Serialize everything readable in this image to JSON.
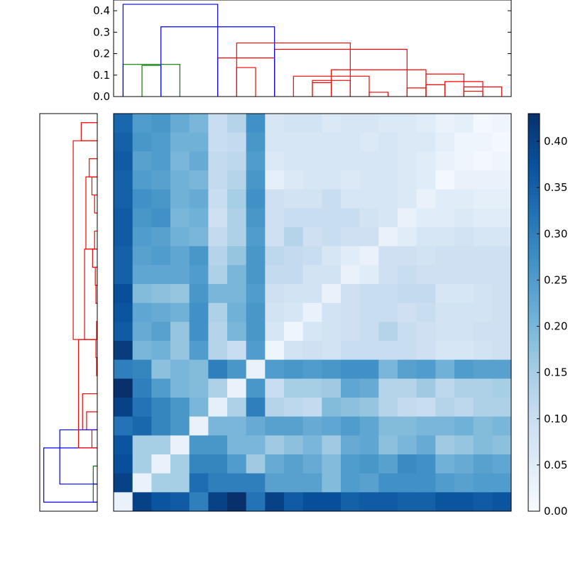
{
  "chart_data": [
    {
      "type": "dendrogram",
      "orientation": "top",
      "ylim": [
        0,
        0.45
      ],
      "yticks": [
        "0.0",
        "0.1",
        "0.2",
        "0.3",
        "0.4"
      ],
      "colors": {
        "blue": "#0000ff",
        "green": "#008000",
        "red": "#ff0000"
      },
      "links": [
        {
          "left": 1,
          "right": 2,
          "height": 0.145,
          "color": "green"
        },
        {
          "left": 0,
          "right": 3,
          "height": 0.15,
          "color": "green"
        },
        {
          "left": 6,
          "right": 7,
          "height": 0.135,
          "color": "red"
        },
        {
          "left": 5,
          "right": 8,
          "height": 0.18,
          "color": "red"
        },
        {
          "left": 10,
          "right": 11,
          "height": 0.065,
          "color": "red"
        },
        {
          "left": 10,
          "right": 12,
          "height": 0.075,
          "color": "red"
        },
        {
          "left": 9,
          "right": 13,
          "height": 0.095,
          "color": "red"
        },
        {
          "left": 13,
          "right": 14,
          "height": 0.02,
          "color": "red"
        },
        {
          "left": 15,
          "right": 16,
          "height": 0.04,
          "color": "red"
        },
        {
          "left": 16,
          "right": 17,
          "height": 0.055,
          "color": "red"
        },
        {
          "left": 18,
          "right": 19,
          "height": 0.025,
          "color": "red"
        },
        {
          "left": 18,
          "right": 20,
          "height": 0.045,
          "color": "red"
        },
        {
          "left": 17,
          "right": 19,
          "height": 0.07,
          "color": "red"
        },
        {
          "left": 16,
          "right": 18,
          "height": 0.105,
          "color": "red"
        },
        {
          "left": 11,
          "right": 16,
          "height": 0.125,
          "color": "red"
        },
        {
          "left": 8,
          "right": 15,
          "height": 0.22,
          "color": "red"
        },
        {
          "left": 6,
          "right": 12,
          "height": 0.25,
          "color": "red"
        },
        {
          "left": 2,
          "right": 8,
          "height": 0.325,
          "color": "blue"
        },
        {
          "left": 0,
          "right": 5,
          "height": 0.43,
          "color": "blue"
        }
      ]
    },
    {
      "type": "dendrogram",
      "orientation": "left",
      "colors": {
        "blue": "#0000ff",
        "green": "#008000",
        "red": "#ff0000"
      },
      "links": [
        {
          "leaf_a": 1,
          "leaf_b": 2,
          "distance": 0.03,
          "color": "green"
        },
        {
          "leaf_a": 0,
          "leaf_b": 1,
          "distance": 0.03,
          "color": "green"
        },
        {
          "leaf_a": 3,
          "leaf_b": 4,
          "distance": 0.04,
          "color": "red"
        },
        {
          "leaf_a": 4,
          "leaf_b": 5,
          "distance": 0.08,
          "color": "red"
        },
        {
          "leaf_a": 4,
          "leaf_b": 6,
          "distance": 0.11,
          "color": "red"
        },
        {
          "leaf_a": 1,
          "leaf_b": 4,
          "distance": 0.28,
          "color": "blue"
        },
        {
          "leaf_a": 0,
          "leaf_b": 3,
          "distance": 0.4,
          "color": "blue"
        },
        {
          "leaf_a": 7,
          "leaf_b": 8,
          "distance": 0.005,
          "color": "red"
        },
        {
          "leaf_a": 9,
          "leaf_b": 10,
          "distance": 0.005,
          "color": "red"
        },
        {
          "leaf_a": 8,
          "leaf_b": 9,
          "distance": 0.01,
          "color": "red"
        },
        {
          "leaf_a": 11,
          "leaf_b": 12,
          "distance": 0.01,
          "color": "red"
        },
        {
          "leaf_a": 12,
          "leaf_b": 13,
          "distance": 0.015,
          "color": "red"
        },
        {
          "leaf_a": 14,
          "leaf_b": 15,
          "distance": 0.02,
          "color": "red"
        },
        {
          "leaf_a": 13,
          "leaf_b": 14,
          "distance": 0.035,
          "color": "red"
        },
        {
          "leaf_a": 16,
          "leaf_b": 17,
          "distance": 0.02,
          "color": "red"
        },
        {
          "leaf_a": 17,
          "leaf_b": 18,
          "distance": 0.04,
          "color": "red"
        },
        {
          "leaf_a": 18,
          "leaf_b": 19,
          "distance": 0.06,
          "color": "red"
        },
        {
          "leaf_a": 14,
          "leaf_b": 18,
          "distance": 0.085,
          "color": "red"
        },
        {
          "leaf_a": 9,
          "leaf_b": 14,
          "distance": 0.095,
          "color": "red"
        },
        {
          "leaf_a": 20,
          "leaf_b": 21,
          "distance": 0.12,
          "color": "red"
        },
        {
          "leaf_a": 9,
          "leaf_b": 20,
          "distance": 0.18,
          "color": "red"
        },
        {
          "leaf_a": 3,
          "leaf_b": 9,
          "distance": 0.14,
          "color": "red"
        }
      ]
    },
    {
      "type": "heatmap",
      "rows": 21,
      "cols": 21,
      "colormap": "Blues",
      "vmin": 0,
      "vmax": 0.43,
      "colorbar_ticks": [
        "0.00",
        "0.05",
        "0.10",
        "0.15",
        "0.20",
        "0.25",
        "0.30",
        "0.35",
        "0.40"
      ],
      "values": [
        [
          0.34,
          0.25,
          0.26,
          0.22,
          0.2,
          0.1,
          0.13,
          0.27,
          0.07,
          0.08,
          0.08,
          0.06,
          0.07,
          0.07,
          0.06,
          0.06,
          0.05,
          0.03,
          0.04,
          0.01,
          0.02
        ],
        [
          0.35,
          0.26,
          0.25,
          0.21,
          0.21,
          0.1,
          0.11,
          0.26,
          0.07,
          0.07,
          0.07,
          0.07,
          0.07,
          0.06,
          0.07,
          0.06,
          0.06,
          0.04,
          0.02,
          0.02,
          0.01
        ],
        [
          0.36,
          0.24,
          0.25,
          0.2,
          0.22,
          0.11,
          0.12,
          0.25,
          0.06,
          0.07,
          0.07,
          0.07,
          0.07,
          0.07,
          0.07,
          0.06,
          0.05,
          0.03,
          0.02,
          0.01,
          0.02
        ],
        [
          0.35,
          0.25,
          0.24,
          0.21,
          0.2,
          0.11,
          0.13,
          0.26,
          0.04,
          0.06,
          0.07,
          0.07,
          0.06,
          0.07,
          0.07,
          0.06,
          0.05,
          0.01,
          0.03,
          0.03,
          0.03
        ],
        [
          0.35,
          0.27,
          0.26,
          0.21,
          0.22,
          0.1,
          0.15,
          0.27,
          0.09,
          0.08,
          0.08,
          0.1,
          0.07,
          0.07,
          0.07,
          0.06,
          0.03,
          0.05,
          0.05,
          0.04,
          0.04
        ],
        [
          0.36,
          0.26,
          0.27,
          0.2,
          0.21,
          0.09,
          0.14,
          0.26,
          0.09,
          0.1,
          0.1,
          0.1,
          0.1,
          0.08,
          0.07,
          0.03,
          0.05,
          0.05,
          0.06,
          0.05,
          0.05
        ],
        [
          0.36,
          0.25,
          0.24,
          0.21,
          0.2,
          0.11,
          0.14,
          0.25,
          0.09,
          0.13,
          0.09,
          0.1,
          0.09,
          0.09,
          0.03,
          0.05,
          0.07,
          0.07,
          0.08,
          0.07,
          0.07
        ],
        [
          0.35,
          0.24,
          0.25,
          0.23,
          0.26,
          0.13,
          0.17,
          0.26,
          0.12,
          0.11,
          0.1,
          0.07,
          0.05,
          0.03,
          0.09,
          0.09,
          0.08,
          0.09,
          0.09,
          0.09,
          0.09
        ],
        [
          0.35,
          0.23,
          0.23,
          0.23,
          0.25,
          0.14,
          0.2,
          0.26,
          0.11,
          0.11,
          0.08,
          0.08,
          0.03,
          0.05,
          0.09,
          0.1,
          0.09,
          0.09,
          0.09,
          0.09,
          0.09
        ],
        [
          0.38,
          0.19,
          0.18,
          0.17,
          0.26,
          0.2,
          0.2,
          0.25,
          0.09,
          0.08,
          0.08,
          0.03,
          0.09,
          0.1,
          0.1,
          0.11,
          0.11,
          0.07,
          0.07,
          0.08,
          0.09
        ],
        [
          0.37,
          0.23,
          0.22,
          0.21,
          0.27,
          0.14,
          0.21,
          0.26,
          0.08,
          0.07,
          0.03,
          0.08,
          0.09,
          0.1,
          0.1,
          0.09,
          0.1,
          0.08,
          0.08,
          0.08,
          0.09
        ],
        [
          0.36,
          0.22,
          0.24,
          0.17,
          0.27,
          0.13,
          0.2,
          0.26,
          0.07,
          0.02,
          0.07,
          0.08,
          0.09,
          0.1,
          0.13,
          0.1,
          0.09,
          0.08,
          0.08,
          0.09,
          0.09
        ],
        [
          0.41,
          0.2,
          0.21,
          0.17,
          0.25,
          0.13,
          0.1,
          0.25,
          0.02,
          0.08,
          0.09,
          0.08,
          0.1,
          0.1,
          0.1,
          0.1,
          0.09,
          0.07,
          0.07,
          0.08,
          0.09
        ],
        [
          0.3,
          0.29,
          0.18,
          0.2,
          0.19,
          0.3,
          0.26,
          0.03,
          0.25,
          0.26,
          0.25,
          0.26,
          0.27,
          0.27,
          0.2,
          0.24,
          0.25,
          0.21,
          0.25,
          0.24,
          0.24
        ],
        [
          0.43,
          0.3,
          0.25,
          0.2,
          0.19,
          0.14,
          0.03,
          0.26,
          0.1,
          0.15,
          0.15,
          0.16,
          0.23,
          0.22,
          0.13,
          0.13,
          0.16,
          0.12,
          0.14,
          0.14,
          0.15
        ],
        [
          0.4,
          0.32,
          0.29,
          0.26,
          0.2,
          0.04,
          0.14,
          0.3,
          0.13,
          0.12,
          0.11,
          0.19,
          0.18,
          0.17,
          0.13,
          0.11,
          0.1,
          0.13,
          0.12,
          0.14,
          0.14
        ],
        [
          0.32,
          0.34,
          0.29,
          0.26,
          0.03,
          0.2,
          0.2,
          0.22,
          0.24,
          0.24,
          0.22,
          0.23,
          0.25,
          0.23,
          0.19,
          0.19,
          0.2,
          0.2,
          0.21,
          0.19,
          0.2
        ],
        [
          0.37,
          0.15,
          0.15,
          0.03,
          0.26,
          0.26,
          0.2,
          0.2,
          0.16,
          0.18,
          0.2,
          0.16,
          0.22,
          0.23,
          0.18,
          0.2,
          0.22,
          0.16,
          0.17,
          0.19,
          0.18
        ],
        [
          0.38,
          0.15,
          0.03,
          0.15,
          0.29,
          0.29,
          0.25,
          0.16,
          0.22,
          0.24,
          0.22,
          0.19,
          0.25,
          0.26,
          0.24,
          0.28,
          0.27,
          0.21,
          0.22,
          0.24,
          0.23
        ],
        [
          0.4,
          0.03,
          0.15,
          0.15,
          0.33,
          0.3,
          0.3,
          0.3,
          0.24,
          0.24,
          0.24,
          0.19,
          0.25,
          0.24,
          0.27,
          0.27,
          0.27,
          0.25,
          0.24,
          0.25,
          0.25
        ],
        [
          0.03,
          0.4,
          0.37,
          0.36,
          0.3,
          0.4,
          0.43,
          0.32,
          0.4,
          0.36,
          0.38,
          0.38,
          0.35,
          0.36,
          0.36,
          0.35,
          0.35,
          0.37,
          0.37,
          0.36,
          0.37
        ]
      ]
    }
  ]
}
